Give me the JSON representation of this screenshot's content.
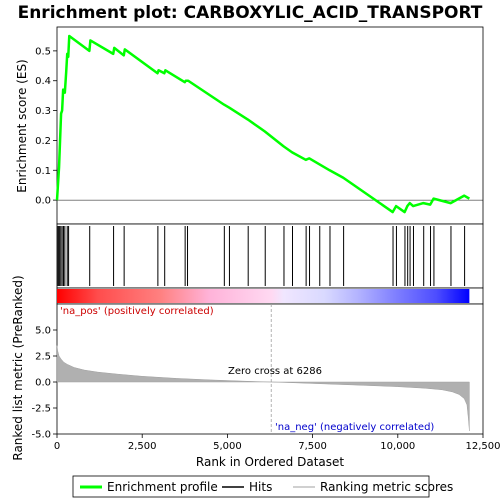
{
  "chart_data": {
    "type": "line",
    "title": "Enrichment plot: CARBOXYLIC_ACID_TRANSPORT",
    "top_panel": {
      "ylabel": "Enrichment score (ES)",
      "ylim": [
        -0.08,
        0.58
      ],
      "yticks": [
        0.0,
        0.1,
        0.2,
        0.3,
        0.4,
        0.5
      ],
      "ytick_labels": [
        "0.0",
        "0.1",
        "0.2",
        "0.3",
        "0.4",
        "0.5"
      ],
      "series": [
        {
          "name": "Enrichment profile",
          "color": "#00ff00",
          "x": [
            0,
            60,
            90,
            120,
            150,
            180,
            230,
            270,
            300,
            330,
            360,
            950,
            980,
            1650,
            1680,
            1960,
            1990,
            2950,
            2980,
            3150,
            3180,
            3750,
            3780,
            3850,
            4900,
            5050,
            5600,
            6100,
            6650,
            6900,
            7300,
            7400,
            7700,
            8000,
            8400,
            9850,
            9950,
            10200,
            10280,
            10350,
            10450,
            10750,
            10950,
            11050,
            11550,
            11950,
            12100
          ],
          "y": [
            0.0,
            0.11,
            0.2,
            0.29,
            0.3,
            0.37,
            0.36,
            0.43,
            0.49,
            0.48,
            0.55,
            0.5,
            0.535,
            0.49,
            0.51,
            0.485,
            0.505,
            0.425,
            0.435,
            0.425,
            0.435,
            0.395,
            0.4,
            0.4,
            0.32,
            0.31,
            0.27,
            0.23,
            0.18,
            0.16,
            0.135,
            0.14,
            0.12,
            0.1,
            0.075,
            -0.04,
            -0.02,
            -0.04,
            -0.02,
            -0.01,
            -0.02,
            -0.01,
            -0.015,
            0.005,
            -0.01,
            0.015,
            0.005
          ]
        }
      ]
    },
    "hits": [
      10,
      40,
      70,
      110,
      150,
      190,
      230,
      300,
      340,
      960,
      1660,
      1970,
      2960,
      3160,
      3760,
      3830,
      4910,
      5060,
      5610,
      6110,
      6660,
      6910,
      7310,
      7410,
      7710,
      8010,
      8410,
      9860,
      9960,
      10210,
      10290,
      10360,
      10460,
      10760,
      10960,
      11060,
      11560,
      11960
    ],
    "bottom_panel": {
      "ylabel": "Ranked list metric (PreRanked)",
      "xlabel": "Rank in Ordered Dataset",
      "ylim": [
        -5.0,
        7.5
      ],
      "yticks": [
        -5.0,
        -2.5,
        0.0,
        2.5,
        5.0
      ],
      "ytick_labels": [
        "-5.0",
        "-2.5",
        "0.0",
        "2.5",
        "5.0"
      ],
      "metric_profile": {
        "x": [
          0,
          20,
          60,
          120,
          200,
          300,
          500,
          800,
          1200,
          1800,
          2500,
          3500,
          4500,
          5500,
          6286,
          7000,
          8000,
          9000,
          10000,
          10800,
          11300,
          11600,
          11800,
          11950,
          12030,
          12070,
          12100
        ],
        "y": [
          3.5,
          3.0,
          2.5,
          2.2,
          1.9,
          1.7,
          1.4,
          1.15,
          0.95,
          0.75,
          0.55,
          0.35,
          0.2,
          0.08,
          0.0,
          -0.08,
          -0.2,
          -0.32,
          -0.45,
          -0.6,
          -0.75,
          -0.95,
          -1.2,
          -1.6,
          -2.2,
          -3.5,
          -4.7
        ]
      },
      "annotations": {
        "pos": "'na_pos' (positively correlated)",
        "neg": "'na_neg' (negatively correlated)",
        "zero_cross": "Zero cross at 6286"
      },
      "zero_cross_x": 6286
    },
    "x_axis": {
      "xlim": [
        0,
        12500
      ],
      "xticks": [
        0,
        2500,
        5000,
        7500,
        10000,
        12500
      ],
      "xtick_labels": [
        "0",
        "2,500",
        "5,000",
        "7,500",
        "10,000",
        "12,500"
      ]
    },
    "colorbar": {
      "n": 12100,
      "pos_color": "#ff0000",
      "neg_color": "#0000ff"
    },
    "legend": {
      "items": [
        {
          "label": "Enrichment profile",
          "color": "#00ff00"
        },
        {
          "label": "Hits",
          "color": "#000000"
        },
        {
          "label": "Ranking metric scores",
          "color": "#c0c0c0"
        }
      ]
    }
  }
}
